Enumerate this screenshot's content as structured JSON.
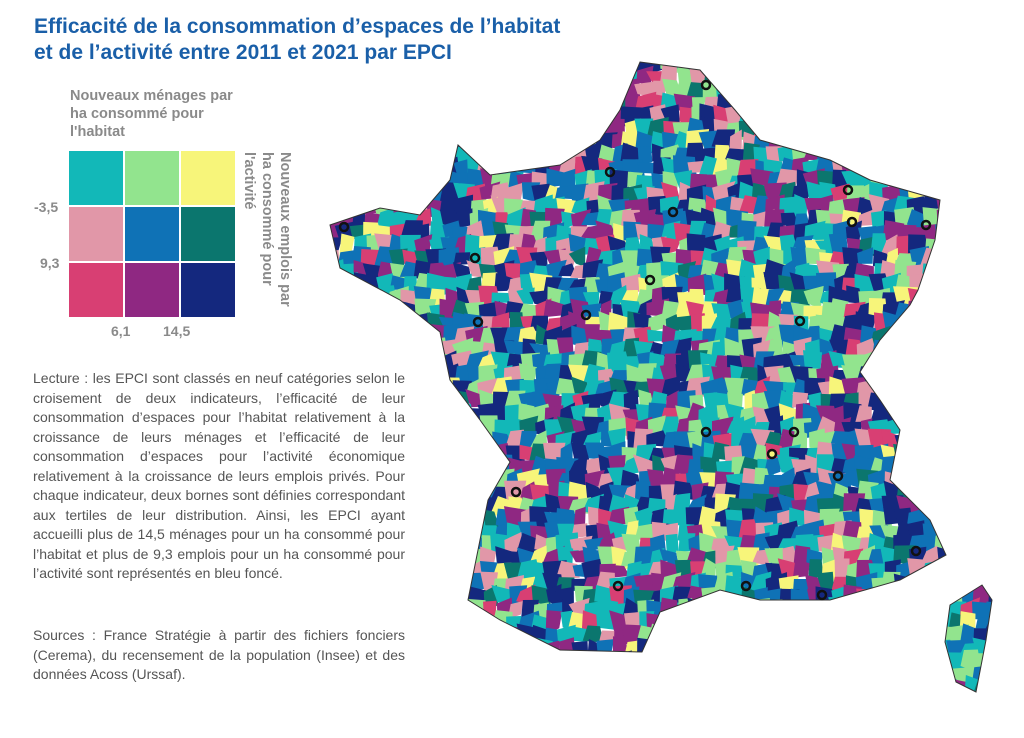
{
  "title_lines": [
    "Efficacité de la consommation d’espaces de l’habitat",
    "et de l’activité entre 2011 et 2021 par EPCI"
  ],
  "legend": {
    "x_title": "Nouveaux ménages par ha consommé pour l'habitat",
    "y_title": "Nouveaux emplois par ha consommé pour l'activité",
    "x_ticks": [
      "6,1",
      "14,5"
    ],
    "y_ticks": [
      "-3,5",
      "9,3"
    ],
    "colors": [
      "#12b8b8",
      "#92e48e",
      "#f7f57a",
      "#e197a8",
      "#0f72b6",
      "#0b766e",
      "#d83f73",
      "#8f2882",
      "#14287e"
    ]
  },
  "reading_note": "Lecture : les EPCI sont classés en neuf catégories selon le croisement de deux indicateurs, l’efficacité de leur consommation d’espaces pour l’habitat relativement à la croissance de leurs ménages et l’efficacité de leur consommation d’espaces pour l’activité économique relativement à la croissance de leurs emplois privés. Pour chaque indicateur, deux bornes sont définies correspondant aux tertiles de leur distribution. Ainsi, les EPCI ayant accueilli plus de 14,5 ménages pour un ha consommé pour l’habitat et plus de 9,3 emplois pour un ha consommé pour l’activité sont représentés en bleu foncé.",
  "sources": "Sources : France Stratégie à partir des fichiers fonciers (Cerema), du recensement de la population (Insee) et des données Acoss (Urssaf)."
}
